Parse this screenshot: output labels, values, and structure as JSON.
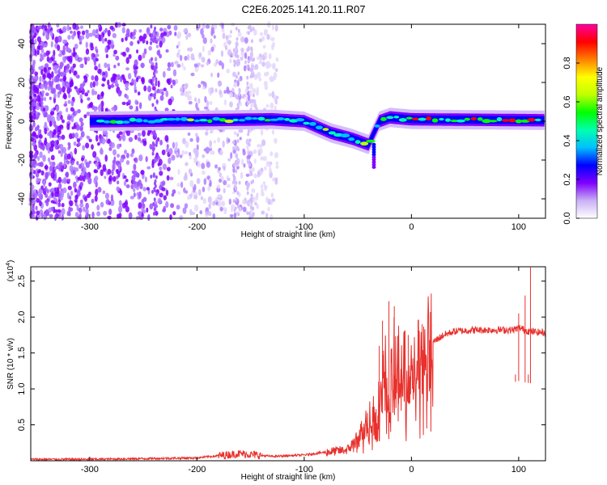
{
  "title": "C2E6.2025.141.20.11.R07",
  "chart_data": [
    {
      "type": "heatmap",
      "xlabel": "Height of straight line (km)",
      "ylabel": "Frequency (Hz)",
      "xlim": [
        -355,
        125
      ],
      "ylim": [
        -50,
        50
      ],
      "x_ticks": [
        -300,
        -200,
        -100,
        0,
        100
      ],
      "y_ticks": [
        -40,
        -20,
        0,
        20,
        40
      ],
      "colorbar": {
        "label": "Normalized spectral amplitude",
        "range": [
          0,
          1
        ],
        "ticks": [
          "0.0",
          "0.2",
          "0.4",
          "0.6",
          "0.8"
        ],
        "colors": [
          "#ffffff",
          "#c9b0f4",
          "#7f00ff",
          "#0000ff",
          "#00bfff",
          "#00ffb0",
          "#00ff00",
          "#c0ff00",
          "#ffff00",
          "#ff8000",
          "#ff0000",
          "#ff00a0"
        ]
      },
      "ridge": [
        {
          "x": -300,
          "y": 0
        },
        {
          "x": -200,
          "y": 0.5
        },
        {
          "x": -130,
          "y": 1
        },
        {
          "x": -100,
          "y": 0
        },
        {
          "x": -75,
          "y": -6
        },
        {
          "x": -55,
          "y": -9
        },
        {
          "x": -40,
          "y": -12
        },
        {
          "x": -30,
          "y": 0
        },
        {
          "x": -20,
          "y": 2
        },
        {
          "x": 0,
          "y": 1
        },
        {
          "x": 125,
          "y": 0.5
        }
      ]
    },
    {
      "type": "line",
      "xlabel": "Height of straight line (km)",
      "ylabel": "SNR (10 * v/v)",
      "y_multiplier": "(x10^4)",
      "xlim": [
        -355,
        125
      ],
      "ylim": [
        0,
        2.7
      ],
      "x_ticks": [
        -300,
        -200,
        -100,
        0,
        100
      ],
      "y_ticks": [
        "0.5",
        "1.0",
        "1.5",
        "2.0",
        "2.5"
      ],
      "series": [
        {
          "color": "#e8302c",
          "points": [
            {
              "x": -355,
              "y": 0.02
            },
            {
              "x": -300,
              "y": 0.02
            },
            {
              "x": -250,
              "y": 0.03
            },
            {
              "x": -200,
              "y": 0.04
            },
            {
              "x": -160,
              "y": 0.1
            },
            {
              "x": -130,
              "y": 0.06
            },
            {
              "x": -100,
              "y": 0.08
            },
            {
              "x": -80,
              "y": 0.12
            },
            {
              "x": -60,
              "y": 0.15
            },
            {
              "x": -50,
              "y": 0.3
            },
            {
              "x": -40,
              "y": 0.6
            },
            {
              "x": -30,
              "y": 0.8
            },
            {
              "x": -25,
              "y": 1.3
            },
            {
              "x": -20,
              "y": 1.0
            },
            {
              "x": -15,
              "y": 1.5
            },
            {
              "x": -10,
              "y": 1.2
            },
            {
              "x": -5,
              "y": 1.3
            },
            {
              "x": 0,
              "y": 1.4
            },
            {
              "x": 5,
              "y": 1.5
            },
            {
              "x": 10,
              "y": 1.55
            },
            {
              "x": 20,
              "y": 1.65
            },
            {
              "x": 30,
              "y": 1.75
            },
            {
              "x": 40,
              "y": 1.8
            },
            {
              "x": 60,
              "y": 1.82
            },
            {
              "x": 80,
              "y": 1.82
            },
            {
              "x": 95,
              "y": 1.82
            },
            {
              "x": 100,
              "y": 1.85
            },
            {
              "x": 110,
              "y": 1.8
            },
            {
              "x": 125,
              "y": 1.78
            }
          ],
          "spikes": [
            {
              "x": -30,
              "y": 1.6
            },
            {
              "x": -27,
              "y": 1.95
            },
            {
              "x": -21,
              "y": 2.22
            },
            {
              "x": -16,
              "y": 2.15
            },
            {
              "x": -12,
              "y": 1.6
            },
            {
              "x": -3,
              "y": 1.75
            },
            {
              "x": 10,
              "y": 1.9
            },
            {
              "x": 97,
              "y": 1.2
            },
            {
              "x": 100,
              "y": 2.05
            },
            {
              "x": 106,
              "y": 2.3
            },
            {
              "x": 111,
              "y": 2.7
            },
            {
              "x": 109,
              "y": 1.2
            }
          ]
        }
      ]
    }
  ]
}
